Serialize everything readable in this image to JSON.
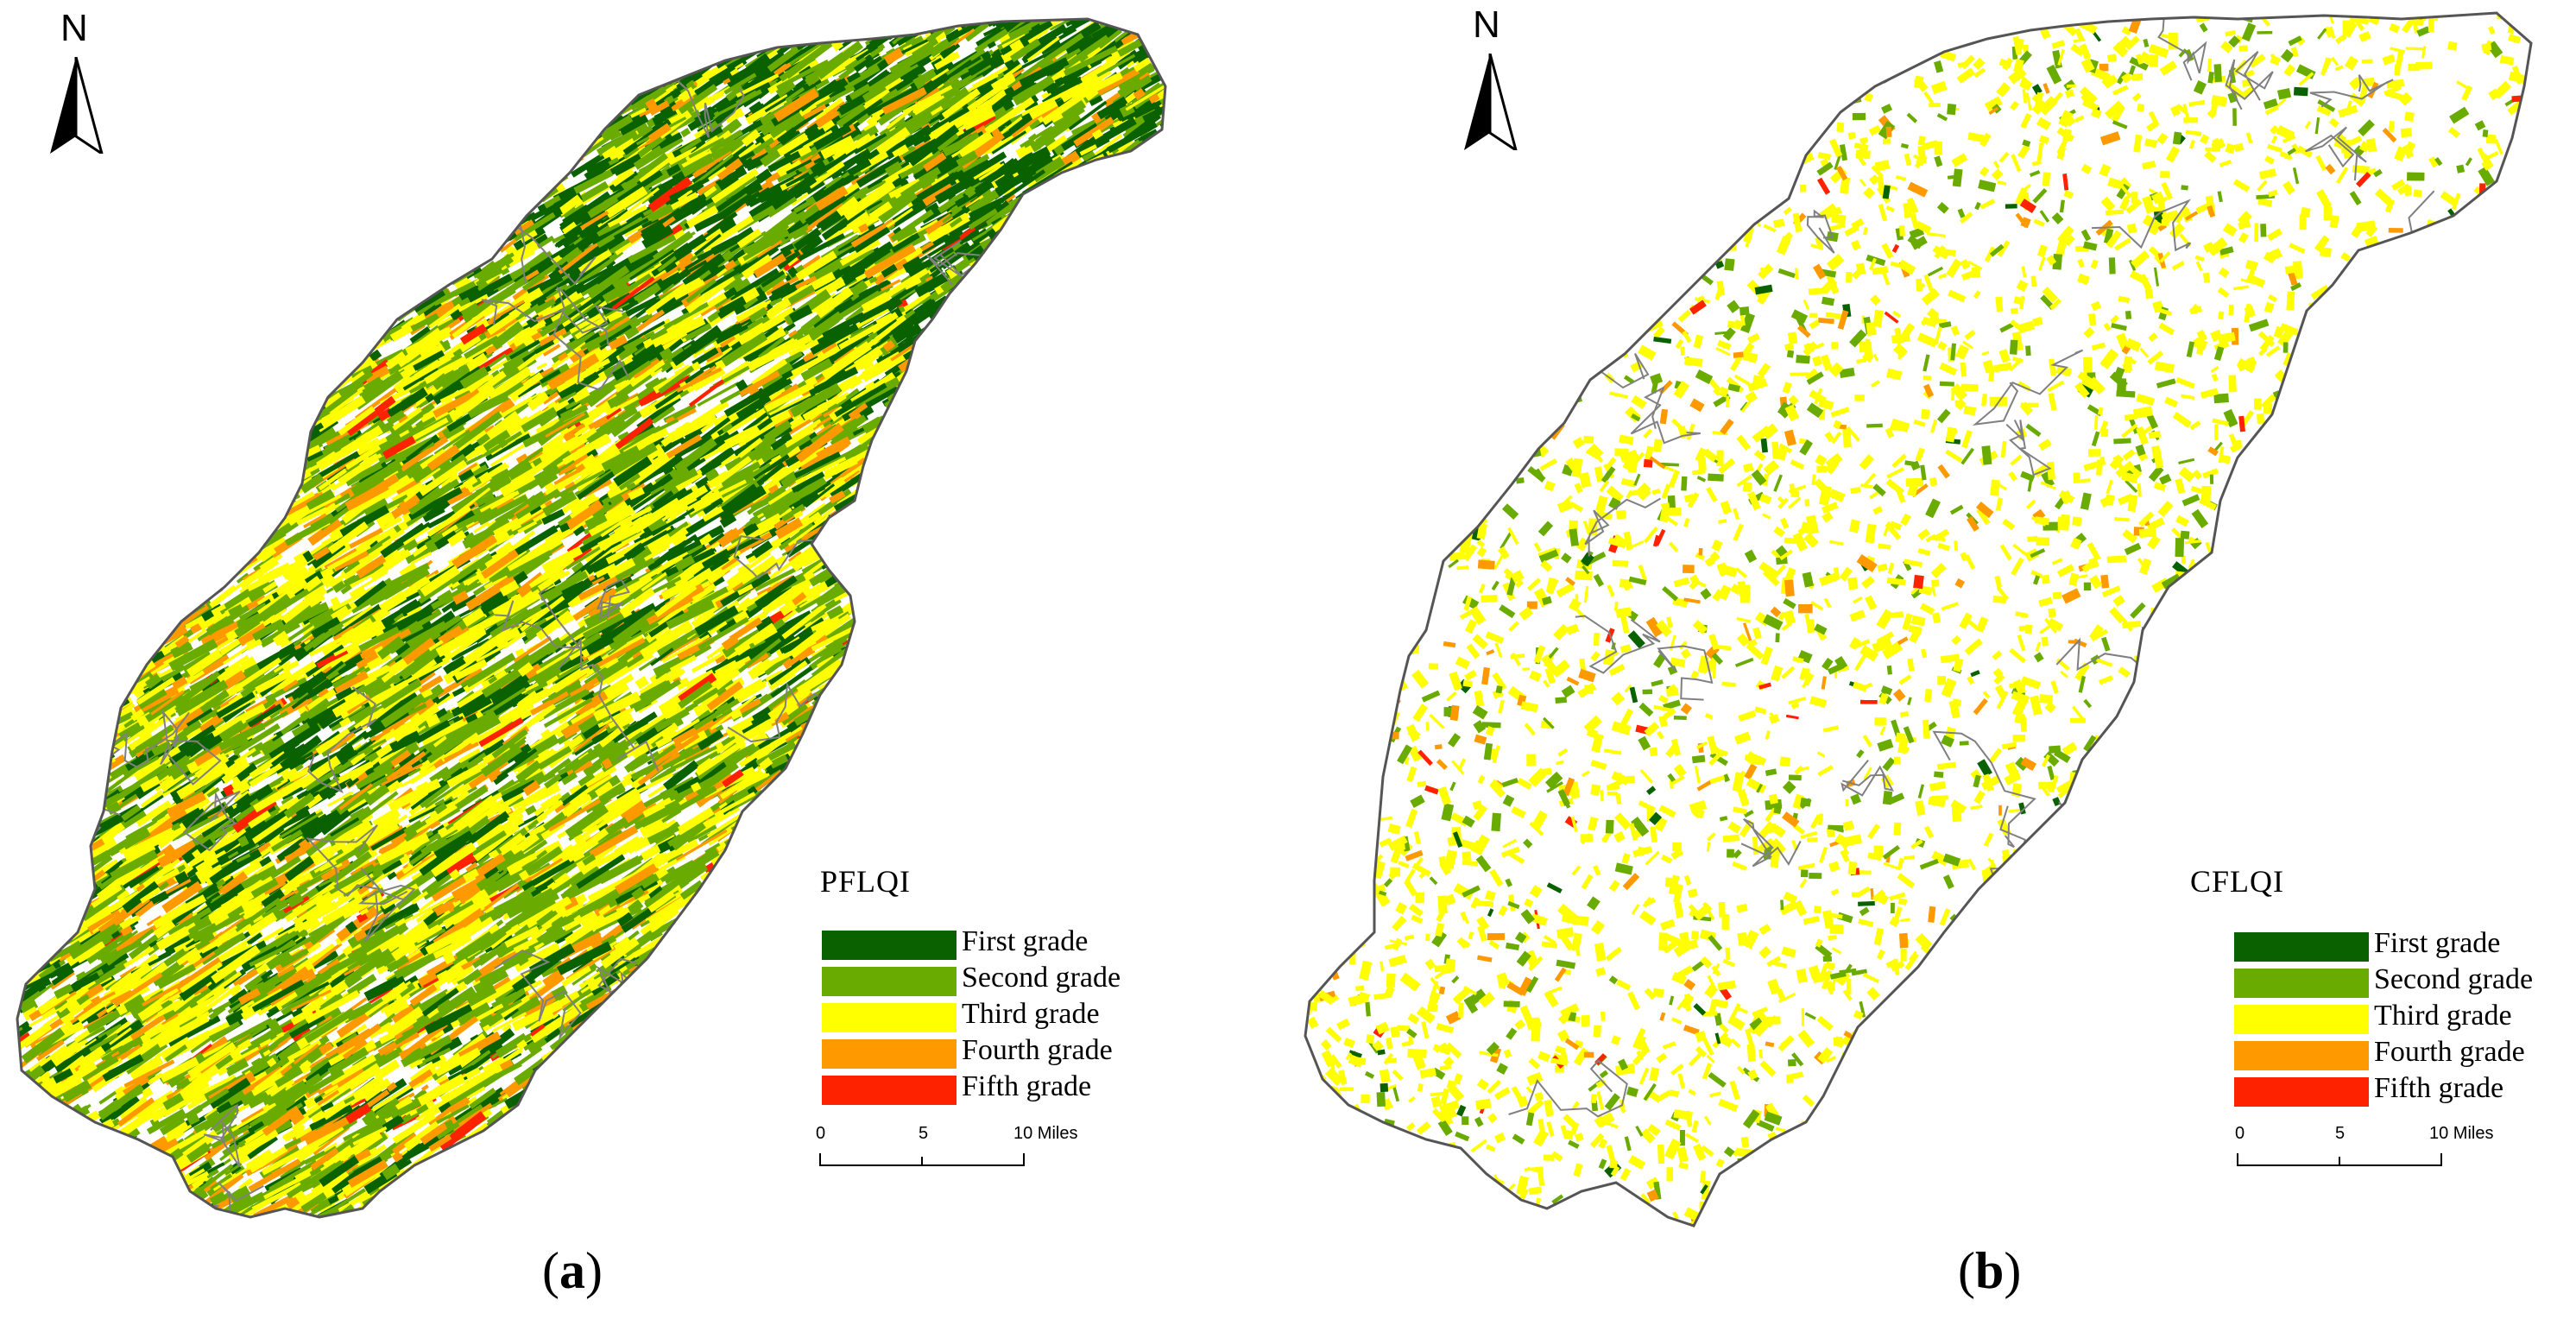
{
  "panels": [
    {
      "id": "a",
      "caption_letter": "a",
      "north_label": "N",
      "legend_title": "PFLQI",
      "legend": [
        {
          "label": "First grade",
          "color": "#0a6100"
        },
        {
          "label": "Second grade",
          "color": "#6aab00"
        },
        {
          "label": "Third grade",
          "color": "#ffff00"
        },
        {
          "label": "Fourth grade",
          "color": "#ff9900"
        },
        {
          "label": "Fifth grade",
          "color": "#ff2200"
        }
      ],
      "scale": {
        "ticks": [
          "0",
          "5",
          "10 Miles"
        ]
      }
    },
    {
      "id": "b",
      "caption_letter": "b",
      "north_label": "N",
      "legend_title": "CFLQI",
      "legend": [
        {
          "label": "First grade",
          "color": "#0a6100"
        },
        {
          "label": "Second grade",
          "color": "#6aab00"
        },
        {
          "label": "Third grade",
          "color": "#ffff00"
        },
        {
          "label": "Fourth grade",
          "color": "#ff9900"
        },
        {
          "label": "Fifth grade",
          "color": "#ff2200"
        }
      ],
      "scale": {
        "ticks": [
          "0",
          "5",
          "10 Miles"
        ]
      }
    }
  ],
  "colors": {
    "boundary": "#808080",
    "outline": "#555555"
  }
}
